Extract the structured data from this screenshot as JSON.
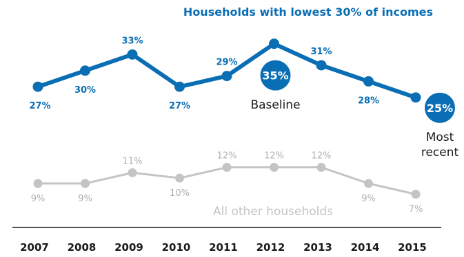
{
  "chart_data": {
    "type": "line",
    "x": [
      "2007",
      "2008",
      "2009",
      "2010",
      "2011",
      "2012",
      "2013",
      "2014",
      "2015"
    ],
    "series": [
      {
        "name": "Households with lowest 30% of incomes",
        "values": [
          27,
          30,
          33,
          27,
          29,
          35,
          31,
          28,
          25
        ],
        "labels": [
          "27%",
          "30%",
          "33%",
          "27%",
          "29%",
          "35%",
          "31%",
          "28%",
          "25%"
        ],
        "color": "#0a6eb4"
      },
      {
        "name": "All other households",
        "values": [
          9,
          9,
          11,
          10,
          12,
          12,
          12,
          9,
          7
        ],
        "labels": [
          "9%",
          "9%",
          "11%",
          "10%",
          "12%",
          "12%",
          "12%",
          "9%",
          "7%"
        ],
        "color": "#c4c4c4"
      }
    ],
    "annotations": {
      "baseline": {
        "label": "Baseline",
        "year": "2012",
        "value_label": "35%"
      },
      "most_recent": {
        "label_line1": "Most",
        "label_line2": "recent",
        "year": "2015",
        "value_label": "25%"
      }
    },
    "ylim": [
      5,
      38
    ],
    "grid": false,
    "title": ""
  },
  "colors": {
    "highlight": "#0a6eb4",
    "muted": "#c4c4c4",
    "axis": "#1a1a1a",
    "year_text": "#1a1a1a"
  }
}
